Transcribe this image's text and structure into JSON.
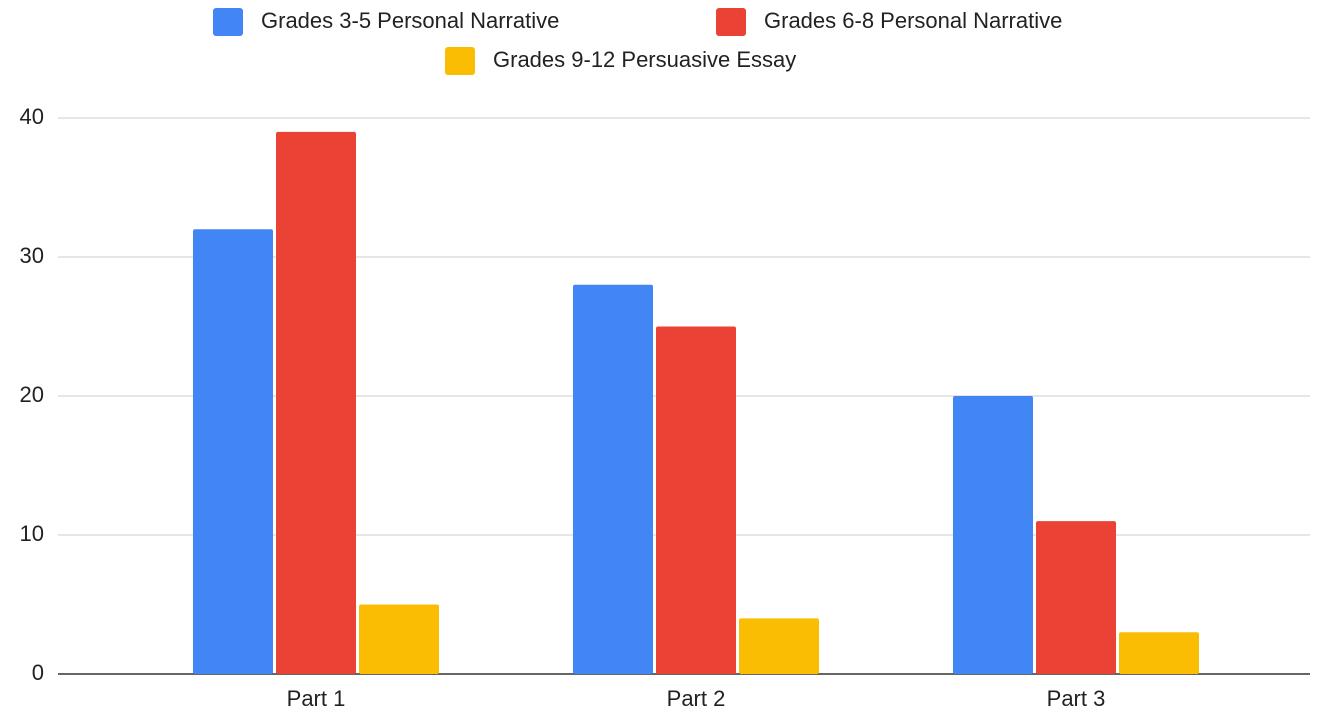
{
  "chart_data": {
    "type": "bar",
    "categories": [
      "Part 1",
      "Part 2",
      "Part 3"
    ],
    "series": [
      {
        "name": "Grades 3-5 Personal Narrative",
        "color": "#4285f4",
        "values": [
          32,
          28,
          20
        ]
      },
      {
        "name": "Grades 6-8 Personal Narrative",
        "color": "#ea4335",
        "values": [
          39,
          25,
          11
        ]
      },
      {
        "name": "Grades 9-12 Persuasive Essay",
        "color": "#fbbc04",
        "values": [
          5,
          4,
          3
        ]
      }
    ],
    "ylim": [
      0,
      40
    ],
    "yticks": [
      0,
      10,
      20,
      30,
      40
    ],
    "grid": true,
    "legend": "top"
  }
}
